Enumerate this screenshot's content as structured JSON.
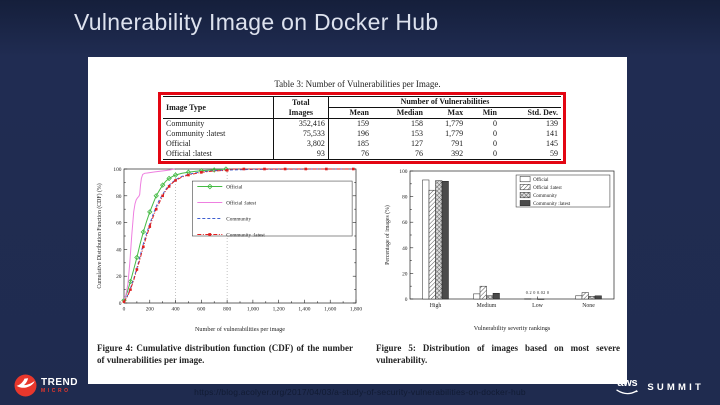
{
  "slide": {
    "title": "Vulnerability Image on Docker Hub",
    "footer_url": "https://blog.acolyer.org/2017/04/03/a-study-of-security-vulnerabilities-on-docker-hub",
    "logos": {
      "trend_line1": "TREND",
      "trend_line2": "MICRO",
      "aws_word": "aws",
      "summit_word": "SUMMIT"
    },
    "colors": {
      "background_navy": "#1f2b4f",
      "highlight_red": "#e30613",
      "trend_red": "#e8372c"
    }
  },
  "table": {
    "caption": "Table 3: Number of Vulnerabilities per Image.",
    "header": {
      "image_type": "Image Type",
      "total_line1": "Total",
      "total_line2": "Images",
      "group": "Number of Vulnerabilities",
      "cols": [
        "Mean",
        "Median",
        "Max",
        "Min",
        "Std. Dev."
      ]
    },
    "rows": [
      [
        "Community",
        "352,416",
        "159",
        "158",
        "1,779",
        "0",
        "139"
      ],
      [
        "Community :latest",
        "75,533",
        "196",
        "153",
        "1,779",
        "0",
        "141"
      ],
      [
        "Official",
        "3,802",
        "185",
        "127",
        "791",
        "0",
        "145"
      ],
      [
        "Official :latest",
        "93",
        "76",
        "76",
        "392",
        "0",
        "59"
      ]
    ]
  },
  "figures": {
    "fig4_caption": "Figure 4: Cumulative distribution function (CDF) of the number of vulnerabilities per image.",
    "fig5_caption": "Figure 5: Distribution of images based on most severe vulnerability."
  },
  "chart_data": [
    {
      "type": "line",
      "title": "",
      "xlabel": "Number of vulnerabilities per image",
      "ylabel": "Cumulative Distribution Function (CDF) (%)",
      "xlim": [
        0,
        1800
      ],
      "ylim": [
        0,
        100
      ],
      "xticks": [
        0,
        200,
        400,
        600,
        800,
        1000,
        1200,
        1400,
        1600,
        1800
      ],
      "yticks": [
        0,
        20,
        40,
        60,
        80,
        100
      ],
      "vlines": [
        400,
        800
      ],
      "grid": false,
      "legend_position": "inside-middle-right",
      "series": [
        {
          "name": "Official",
          "color": "#44bb44",
          "marker": "diamond",
          "dash": "solid",
          "points": [
            [
              0,
              2
            ],
            [
              25,
              8
            ],
            [
              50,
              16
            ],
            [
              75,
              25
            ],
            [
              100,
              34
            ],
            [
              125,
              44
            ],
            [
              150,
              53
            ],
            [
              175,
              61
            ],
            [
              200,
              68
            ],
            [
              225,
              74
            ],
            [
              250,
              80
            ],
            [
              275,
              84
            ],
            [
              300,
              88
            ],
            [
              325,
              91
            ],
            [
              350,
              93
            ],
            [
              375,
              94.3
            ],
            [
              400,
              95.5
            ],
            [
              450,
              96.8
            ],
            [
              500,
              97.6
            ],
            [
              550,
              98.2
            ],
            [
              600,
              98.7
            ],
            [
              650,
              99
            ],
            [
              700,
              99.3
            ],
            [
              750,
              99.6
            ],
            [
              791,
              100
            ]
          ]
        },
        {
          "name": "Official :latest",
          "color": "#ee7fe0",
          "marker": "none",
          "dash": "solid",
          "points": [
            [
              0,
              3
            ],
            [
              15,
              6
            ],
            [
              30,
              14
            ],
            [
              45,
              30
            ],
            [
              60,
              50
            ],
            [
              75,
              68
            ],
            [
              85,
              74
            ],
            [
              95,
              77
            ],
            [
              105,
              78.5
            ],
            [
              115,
              79.5
            ],
            [
              122,
              81
            ],
            [
              128,
              88
            ],
            [
              135,
              93
            ],
            [
              145,
              96
            ],
            [
              160,
              96.8
            ],
            [
              180,
              97
            ],
            [
              200,
              97.3
            ],
            [
              240,
              97.8
            ],
            [
              280,
              98.3
            ],
            [
              320,
              98.8
            ],
            [
              360,
              99.3
            ],
            [
              392,
              100
            ]
          ]
        },
        {
          "name": "Community",
          "color": "#3f5fd0",
          "marker": "none",
          "dash": "dashed",
          "points": [
            [
              0,
              1
            ],
            [
              25,
              5
            ],
            [
              50,
              11
            ],
            [
              75,
              18
            ],
            [
              100,
              26
            ],
            [
              125,
              35
            ],
            [
              150,
              44
            ],
            [
              175,
              52
            ],
            [
              200,
              59
            ],
            [
              225,
              66
            ],
            [
              250,
              72
            ],
            [
              275,
              77
            ],
            [
              300,
              81
            ],
            [
              325,
              85
            ],
            [
              350,
              88
            ],
            [
              375,
              90
            ],
            [
              400,
              92
            ],
            [
              450,
              94.5
            ],
            [
              500,
              96
            ],
            [
              550,
              97
            ],
            [
              600,
              97.8
            ],
            [
              700,
              98.7
            ],
            [
              800,
              99.2
            ],
            [
              900,
              99.5
            ],
            [
              1000,
              99.7
            ],
            [
              1100,
              99.8
            ],
            [
              1200,
              99.85
            ],
            [
              1300,
              99.9
            ],
            [
              1400,
              99.95
            ],
            [
              1500,
              100
            ],
            [
              1600,
              100
            ],
            [
              1700,
              100
            ],
            [
              1779,
              100
            ]
          ]
        },
        {
          "name": "Community :latest",
          "color": "#e02020",
          "marker": "square",
          "dash": "dashdot",
          "points": [
            [
              0,
              1
            ],
            [
              25,
              4.5
            ],
            [
              50,
              10
            ],
            [
              75,
              17
            ],
            [
              100,
              25
            ],
            [
              125,
              33
            ],
            [
              150,
              42
            ],
            [
              175,
              50
            ],
            [
              200,
              57
            ],
            [
              225,
              64
            ],
            [
              250,
              70
            ],
            [
              275,
              75
            ],
            [
              300,
              80
            ],
            [
              325,
              84
            ],
            [
              350,
              87
            ],
            [
              375,
              89.5
            ],
            [
              400,
              91.5
            ],
            [
              450,
              94
            ],
            [
              500,
              95.5
            ],
            [
              550,
              96.6
            ],
            [
              600,
              97.5
            ],
            [
              700,
              98.5
            ],
            [
              800,
              99
            ],
            [
              850,
              100
            ],
            [
              930,
              100
            ],
            [
              1010,
              100
            ],
            [
              1090,
              100
            ],
            [
              1170,
              100
            ],
            [
              1250,
              100
            ],
            [
              1330,
              100
            ],
            [
              1410,
              100
            ],
            [
              1490,
              100
            ],
            [
              1570,
              100
            ],
            [
              1650,
              100
            ],
            [
              1779,
              100
            ]
          ]
        }
      ]
    },
    {
      "type": "bar",
      "title": "",
      "xlabel": "Vulnerability severity rankings",
      "ylabel": "Percentage of images (%)",
      "categories": [
        "High",
        "Medium",
        "Low",
        "None"
      ],
      "ylim": [
        0,
        100
      ],
      "yticks": [
        0,
        20,
        40,
        60,
        80,
        100
      ],
      "grid": false,
      "legend_position": "inside-top-right",
      "annotation": {
        "text": "0.2 0 0.02 0",
        "category": "Low"
      },
      "series": [
        {
          "name": "Official",
          "fill": "white",
          "values": [
            93,
            4,
            0.2,
            2.5
          ]
        },
        {
          "name": "Official :latest",
          "fill": "diagonal-hatch",
          "values": [
            85,
            10,
            0,
            5
          ]
        },
        {
          "name": "Community",
          "fill": "cross-hatch",
          "values": [
            92.5,
            2.5,
            0.02,
            2
          ]
        },
        {
          "name": "Community :latest",
          "fill": "dark-gray",
          "values": [
            92,
            4.5,
            0,
            2.5
          ]
        }
      ]
    }
  ]
}
